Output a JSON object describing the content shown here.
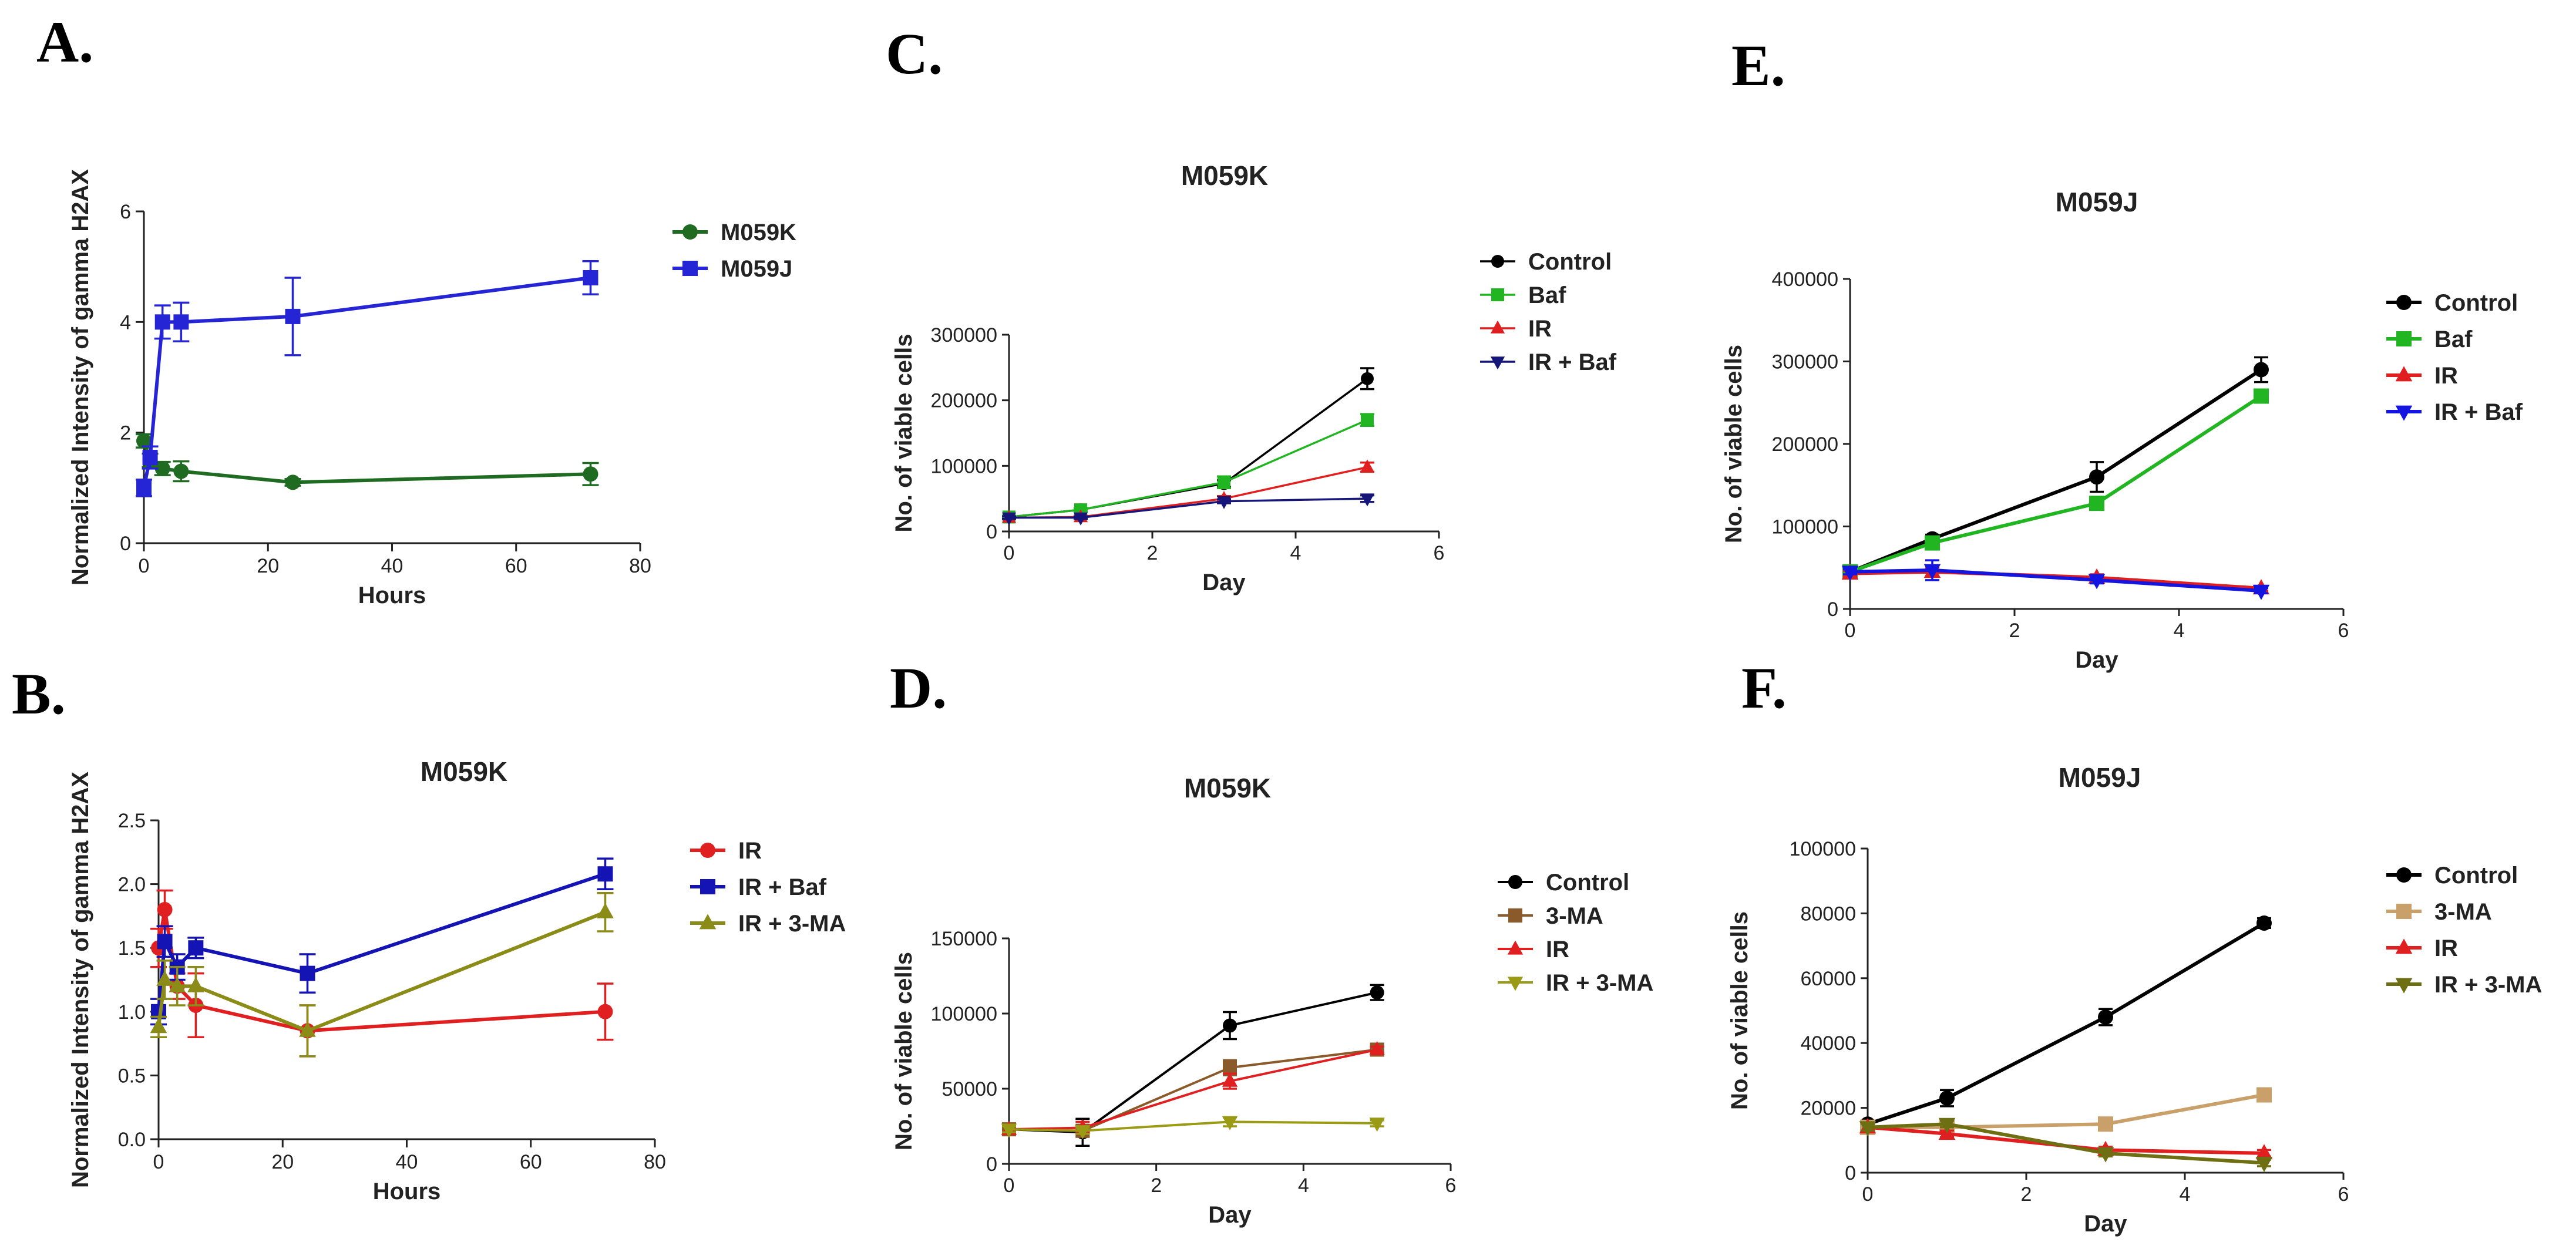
{
  "chart_data": [
    {
      "panel": "A.",
      "type": "line",
      "title": "",
      "xlabel": "Hours",
      "ylabel": "Normalized Intensity of gamma H2AX",
      "xlim": [
        0,
        80
      ],
      "ylim": [
        0,
        6
      ],
      "xticks": [
        0,
        20,
        40,
        60,
        80
      ],
      "yticks": [
        0,
        2,
        4,
        6
      ],
      "x": [
        0,
        1,
        3,
        6,
        24,
        72
      ],
      "series": [
        {
          "name": "M059K",
          "color": "#1f6b22",
          "marker": "circle",
          "values": [
            1.85,
            1.5,
            1.35,
            1.3,
            1.1,
            1.25
          ],
          "errors": [
            0.12,
            0.12,
            0.12,
            0.18,
            0.06,
            0.2
          ]
        },
        {
          "name": "M059J",
          "color": "#2525d6",
          "marker": "square",
          "values": [
            1.0,
            1.55,
            4.0,
            4.0,
            4.1,
            4.8
          ],
          "errors": [
            0.15,
            0.2,
            0.3,
            0.35,
            0.7,
            0.3
          ]
        }
      ]
    },
    {
      "panel": "B.",
      "type": "line",
      "title": "M059K",
      "xlabel": "Hours",
      "ylabel": "Normalized Intensity of gamma H2AX",
      "xlim": [
        0,
        80
      ],
      "ylim": [
        0,
        2.5
      ],
      "xticks": [
        0,
        20,
        40,
        60,
        80
      ],
      "yticks": [
        0,
        0.5,
        1.0,
        1.5,
        2.0,
        2.5
      ],
      "ytick_labels": [
        "0.0",
        "0.5",
        "1.0",
        "1.5",
        "2.0",
        "2.5"
      ],
      "x": [
        0,
        1,
        3,
        6,
        24,
        72
      ],
      "series": [
        {
          "name": "IR",
          "color": "#e02020",
          "marker": "circle",
          "values": [
            1.5,
            1.8,
            1.2,
            1.05,
            0.85,
            1.0
          ],
          "errors": [
            0.15,
            0.15,
            0.1,
            0.25,
            0.2,
            0.22
          ]
        },
        {
          "name": "IR + Baf",
          "color": "#1414b4",
          "marker": "square",
          "values": [
            1.0,
            1.55,
            1.35,
            1.5,
            1.3,
            2.08
          ],
          "errors": [
            0.1,
            0.12,
            0.1,
            0.08,
            0.15,
            0.12
          ]
        },
        {
          "name": "IR + 3-MA",
          "color": "#8b8b18",
          "marker": "triangle",
          "values": [
            0.88,
            1.25,
            1.2,
            1.2,
            0.85,
            1.78
          ],
          "errors": [
            0.08,
            0.15,
            0.15,
            0.15,
            0.2,
            0.15
          ]
        }
      ]
    },
    {
      "panel": "C.",
      "type": "line",
      "title": "M059K",
      "xlabel": "Day",
      "ylabel": "No. of viable cells",
      "xlim": [
        0,
        6
      ],
      "ylim": [
        0,
        300000
      ],
      "xticks": [
        0,
        2,
        4,
        6
      ],
      "yticks": [
        0,
        100000,
        200000,
        300000
      ],
      "x": [
        0,
        1,
        3,
        5
      ],
      "series": [
        {
          "name": "Control",
          "color": "#000000",
          "marker": "circle",
          "values": [
            22000,
            33000,
            73000,
            233000
          ],
          "errors": [
            2000,
            2500,
            5000,
            16000
          ]
        },
        {
          "name": "Baf",
          "color": "#22b522",
          "marker": "square",
          "values": [
            22000,
            33000,
            75000,
            170000
          ],
          "errors": [
            2000,
            2500,
            9000,
            9000
          ]
        },
        {
          "name": "IR",
          "color": "#e02020",
          "marker": "triangle",
          "values": [
            21000,
            22000,
            50000,
            98000
          ],
          "errors": [
            2000,
            2000,
            4000,
            7000
          ]
        },
        {
          "name": "IR + Baf",
          "color": "#15157a",
          "marker": "triangle-down",
          "values": [
            21000,
            21000,
            46000,
            50000
          ],
          "errors": [
            2000,
            2000,
            3000,
            5000
          ]
        }
      ]
    },
    {
      "panel": "D.",
      "type": "line",
      "title": "M059K",
      "xlabel": "Day",
      "ylabel": "No. of viable cells",
      "xlim": [
        0,
        6
      ],
      "ylim": [
        0,
        150000
      ],
      "xticks": [
        0,
        2,
        4,
        6
      ],
      "yticks": [
        0,
        50000,
        100000,
        150000
      ],
      "x": [
        0,
        1,
        3,
        5
      ],
      "series": [
        {
          "name": "Control",
          "color": "#000000",
          "marker": "circle",
          "values": [
            23000,
            21000,
            92000,
            114000
          ],
          "errors": [
            2000,
            9000,
            9000,
            5000
          ]
        },
        {
          "name": "3-MA",
          "color": "#8b5a2b",
          "marker": "square",
          "values": [
            23000,
            22000,
            64000,
            76000
          ],
          "errors": [
            2000,
            4000,
            5000,
            2000
          ]
        },
        {
          "name": "IR",
          "color": "#e02020",
          "marker": "triangle",
          "values": [
            23000,
            24000,
            55000,
            76000
          ],
          "errors": [
            2000,
            4000,
            5000,
            2000
          ]
        },
        {
          "name": "IR + 3-MA",
          "color": "#9a9a15",
          "marker": "triangle-down",
          "values": [
            23000,
            22000,
            28000,
            27000
          ],
          "errors": [
            2000,
            2000,
            3000,
            2000
          ]
        }
      ]
    },
    {
      "panel": "E.",
      "type": "line",
      "title": "M059J",
      "xlabel": "Day",
      "ylabel": "No. of viable cells",
      "xlim": [
        0,
        6
      ],
      "ylim": [
        0,
        400000
      ],
      "xticks": [
        0,
        2,
        4,
        6
      ],
      "yticks": [
        0,
        100000,
        200000,
        300000,
        400000
      ],
      "x": [
        0,
        1,
        3,
        5
      ],
      "series": [
        {
          "name": "Control",
          "color": "#000000",
          "marker": "circle",
          "values": [
            45000,
            85000,
            160000,
            290000
          ],
          "errors": [
            3000,
            5000,
            18000,
            15000
          ]
        },
        {
          "name": "Baf",
          "color": "#22b522",
          "marker": "square",
          "values": [
            45000,
            80000,
            128000,
            258000
          ],
          "errors": [
            3000,
            5000,
            7000,
            8000
          ]
        },
        {
          "name": "IR",
          "color": "#e02020",
          "marker": "triangle",
          "values": [
            43000,
            45000,
            38000,
            25000
          ],
          "errors": [
            3000,
            5000,
            4000,
            3000
          ]
        },
        {
          "name": "IR + Baf",
          "color": "#1515e0",
          "marker": "triangle-down",
          "values": [
            45000,
            47000,
            35000,
            22000
          ],
          "errors": [
            3000,
            12000,
            4000,
            3000
          ]
        }
      ]
    },
    {
      "panel": "F.",
      "type": "line",
      "title": "M059J",
      "xlabel": "Day",
      "ylabel": "No. of viable cells",
      "xlim": [
        0,
        6
      ],
      "ylim": [
        0,
        100000
      ],
      "xticks": [
        0,
        2,
        4,
        6
      ],
      "yticks": [
        0,
        20000,
        40000,
        60000,
        80000,
        100000
      ],
      "x": [
        0,
        1,
        3,
        5
      ],
      "series": [
        {
          "name": "Control",
          "color": "#000000",
          "marker": "circle",
          "values": [
            15000,
            23000,
            48000,
            77000
          ],
          "errors": [
            1000,
            2500,
            2500,
            1500
          ]
        },
        {
          "name": "3-MA",
          "color": "#c9a06a",
          "marker": "square",
          "values": [
            14000,
            14000,
            15000,
            24000
          ],
          "errors": [
            1000,
            1000,
            1000,
            2000
          ]
        },
        {
          "name": "IR",
          "color": "#e02020",
          "marker": "triangle",
          "values": [
            14000,
            12000,
            7000,
            6000
          ],
          "errors": [
            1000,
            1000,
            1000,
            1000
          ]
        },
        {
          "name": "IR + 3-MA",
          "color": "#6e6e12",
          "marker": "triangle-down",
          "values": [
            14000,
            15000,
            6000,
            3000
          ],
          "errors": [
            1000,
            1000,
            1000,
            1000
          ]
        }
      ]
    }
  ]
}
